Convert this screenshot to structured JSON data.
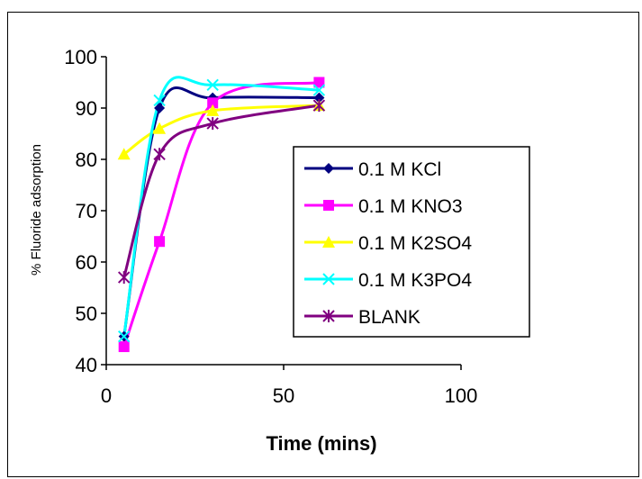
{
  "chart_data": {
    "type": "line",
    "title": "",
    "xlabel": "Time (mins)",
    "ylabel": "% Fluoride adsorption",
    "xlim": [
      0,
      100
    ],
    "ylim": [
      40,
      100
    ],
    "x_ticks": [
      "0",
      "50",
      "100"
    ],
    "y_ticks": [
      "40",
      "50",
      "60",
      "70",
      "80",
      "90",
      "100"
    ],
    "grid": false,
    "legend_position": "center-right",
    "x": [
      5,
      15,
      30,
      60
    ],
    "series": [
      {
        "name": "0.1 M KCl",
        "values": [
          45.5,
          90,
          92,
          92
        ],
        "color": "#000080",
        "marker": "diamond"
      },
      {
        "name": "0.1 M KNO3",
        "values": [
          43.5,
          64,
          91,
          95
        ],
        "color": "#FF00FF",
        "marker": "square"
      },
      {
        "name": "0.1 M K2SO4",
        "values": [
          81,
          86,
          89.5,
          90.5
        ],
        "color": "#FFFF00",
        "marker": "triangle"
      },
      {
        "name": "0.1 M K3PO4",
        "values": [
          45.5,
          91.5,
          94.5,
          93.5
        ],
        "color": "#00FFFF",
        "marker": "x"
      },
      {
        "name": "BLANK",
        "values": [
          57,
          81,
          87,
          90.5
        ],
        "color": "#800080",
        "marker": "star"
      }
    ]
  }
}
